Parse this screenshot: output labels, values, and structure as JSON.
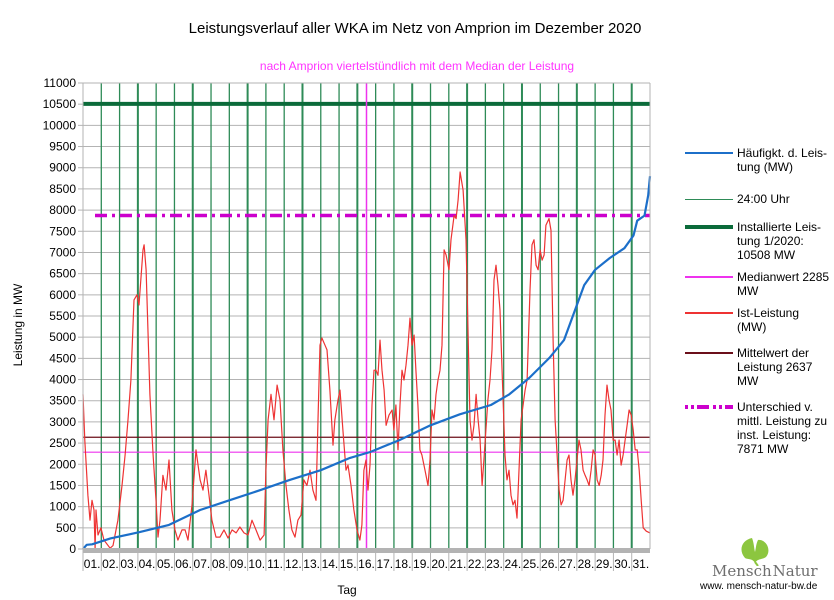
{
  "chart_data": {
    "type": "line",
    "title": "Leistungsverlauf aller WKA im Netz von Amprion im Dezember 2020",
    "subtitle": "nach Amprion viertelstündlich mit dem Median der Leistung",
    "xlabel": "Tag",
    "ylabel": "Leistung in MW",
    "ylim": [
      0,
      11000
    ],
    "xlim": [
      0,
      31
    ],
    "ytick_step": 500,
    "yticks": [
      "0",
      "500",
      "1000",
      "1500",
      "2000",
      "2500",
      "3000",
      "3500",
      "4000",
      "4500",
      "5000",
      "5500",
      "6000",
      "6500",
      "7000",
      "7500",
      "8000",
      "8500",
      "9000",
      "9500",
      "10000",
      "10500",
      "11000"
    ],
    "categories": [
      "01.",
      "02.",
      "03.",
      "04.",
      "05.",
      "06.",
      "07.",
      "08.",
      "09.",
      "10.",
      "11.",
      "12.",
      "13.",
      "14.",
      "15.",
      "16.",
      "17.",
      "18.",
      "19.",
      "20.",
      "21.",
      "22.",
      "23.",
      "24.",
      "25.",
      "26.",
      "27.",
      "28.",
      "29.",
      "30.",
      "31."
    ],
    "grid": true,
    "legend_position": "right",
    "series": [
      {
        "name": "Häufigkt. d. Leistung (MW)",
        "legend_lines": [
          "Häufigkt. d. Leis-",
          "tung (MW)"
        ],
        "color": "#1c6fc9",
        "style": "solid",
        "points": [
          [
            0,
            0
          ],
          [
            0.2,
            100
          ],
          [
            0.5,
            110
          ],
          [
            1.5,
            250
          ],
          [
            3.1,
            400
          ],
          [
            4.7,
            570
          ],
          [
            6.4,
            920
          ],
          [
            8.0,
            1150
          ],
          [
            9.7,
            1390
          ],
          [
            11.3,
            1630
          ],
          [
            13.0,
            1860
          ],
          [
            14.6,
            2150
          ],
          [
            15.7,
            2290
          ],
          [
            17.3,
            2570
          ],
          [
            19.0,
            2920
          ],
          [
            20.6,
            3180
          ],
          [
            22.3,
            3400
          ],
          [
            23.3,
            3650
          ],
          [
            24.4,
            4040
          ],
          [
            25.5,
            4510
          ],
          [
            26.3,
            4930
          ],
          [
            26.9,
            5640
          ],
          [
            27.4,
            6230
          ],
          [
            28.0,
            6590
          ],
          [
            28.8,
            6870
          ],
          [
            29.6,
            7100
          ],
          [
            30.1,
            7400
          ],
          [
            30.3,
            7750
          ],
          [
            30.7,
            7870
          ],
          [
            30.9,
            8350
          ],
          [
            31.0,
            8800
          ]
        ]
      },
      {
        "name": "24:00 Uhr",
        "legend_lines": [
          "24:00 Uhr"
        ],
        "color": "#2e8b57",
        "style": "vertical-day-lines"
      },
      {
        "name": "Installierte Leistung 1/2020: 10508 MW",
        "legend_lines": [
          "Installierte Leis-",
          "tung 1/2020:",
          "10508 MW"
        ],
        "color": "#0b6b3a",
        "style": "thick",
        "value": 10508
      },
      {
        "name": "Medianwert 2285 MW",
        "legend_lines": [
          "Medianwert 2285",
          "MW"
        ],
        "color": "#ee33ee",
        "style": "solid",
        "value": 2285,
        "x_marker_day": 15.5
      },
      {
        "name": "Ist-Leistung (MW)",
        "legend_lines": [
          "Ist-Leistung",
          "(MW)"
        ],
        "color": "#ee3333",
        "style": "solid",
        "points": [
          [
            0,
            3650
          ],
          [
            0.1,
            2570
          ],
          [
            0.27,
            1270
          ],
          [
            0.38,
            680
          ],
          [
            0.49,
            1150
          ],
          [
            0.6,
            920
          ],
          [
            0.66,
            0
          ],
          [
            0.71,
            920
          ],
          [
            0.82,
            330
          ],
          [
            0.98,
            500
          ],
          [
            1.15,
            210
          ],
          [
            1.48,
            20
          ],
          [
            1.64,
            80
          ],
          [
            1.91,
            680
          ],
          [
            2.13,
            1500
          ],
          [
            2.3,
            2220
          ],
          [
            2.46,
            3050
          ],
          [
            2.62,
            3990
          ],
          [
            2.79,
            5880
          ],
          [
            2.95,
            6000
          ],
          [
            3.06,
            5760
          ],
          [
            3.28,
            7060
          ],
          [
            3.34,
            7180
          ],
          [
            3.45,
            6590
          ],
          [
            3.56,
            5050
          ],
          [
            3.66,
            3650
          ],
          [
            3.83,
            2220
          ],
          [
            3.99,
            1150
          ],
          [
            4.1,
            280
          ],
          [
            4.21,
            680
          ],
          [
            4.37,
            1740
          ],
          [
            4.54,
            1390
          ],
          [
            4.7,
            2100
          ],
          [
            4.86,
            920
          ],
          [
            5.03,
            450
          ],
          [
            5.19,
            210
          ],
          [
            5.41,
            450
          ],
          [
            5.58,
            450
          ],
          [
            5.74,
            210
          ],
          [
            5.96,
            1040
          ],
          [
            6.18,
            2340
          ],
          [
            6.4,
            1630
          ],
          [
            6.56,
            1390
          ],
          [
            6.72,
            1860
          ],
          [
            6.89,
            1270
          ],
          [
            7.05,
            680
          ],
          [
            7.27,
            280
          ],
          [
            7.49,
            280
          ],
          [
            7.71,
            450
          ],
          [
            7.93,
            260
          ],
          [
            8.15,
            450
          ],
          [
            8.37,
            380
          ],
          [
            8.58,
            520
          ],
          [
            8.8,
            380
          ],
          [
            9.02,
            330
          ],
          [
            9.24,
            680
          ],
          [
            9.46,
            450
          ],
          [
            9.68,
            210
          ],
          [
            9.9,
            330
          ],
          [
            10.0,
            1860
          ],
          [
            10.12,
            3050
          ],
          [
            10.28,
            3650
          ],
          [
            10.44,
            3050
          ],
          [
            10.61,
            3870
          ],
          [
            10.77,
            3520
          ],
          [
            10.93,
            2340
          ],
          [
            11.1,
            1500
          ],
          [
            11.26,
            920
          ],
          [
            11.42,
            450
          ],
          [
            11.59,
            280
          ],
          [
            11.75,
            680
          ],
          [
            11.92,
            800
          ],
          [
            12.08,
            1630
          ],
          [
            12.24,
            1500
          ],
          [
            12.41,
            1860
          ],
          [
            12.57,
            1390
          ],
          [
            12.74,
            1150
          ],
          [
            12.85,
            3050
          ],
          [
            12.96,
            4810
          ],
          [
            13.06,
            4980
          ],
          [
            13.23,
            4810
          ],
          [
            13.34,
            4700
          ],
          [
            13.5,
            3750
          ],
          [
            13.67,
            2450
          ],
          [
            13.77,
            3050
          ],
          [
            13.94,
            3520
          ],
          [
            14.05,
            3750
          ],
          [
            14.21,
            2810
          ],
          [
            14.38,
            1860
          ],
          [
            14.49,
            1980
          ],
          [
            14.65,
            1500
          ],
          [
            14.81,
            920
          ],
          [
            14.98,
            450
          ],
          [
            15.14,
            210
          ],
          [
            15.25,
            570
          ],
          [
            15.36,
            1860
          ],
          [
            15.47,
            2100
          ],
          [
            15.58,
            1390
          ],
          [
            15.69,
            1980
          ],
          [
            15.8,
            3400
          ],
          [
            15.91,
            4220
          ],
          [
            16.02,
            4220
          ],
          [
            16.13,
            4100
          ],
          [
            16.24,
            4930
          ],
          [
            16.35,
            4220
          ],
          [
            16.46,
            3750
          ],
          [
            16.57,
            2920
          ],
          [
            16.73,
            3160
          ],
          [
            16.9,
            3280
          ],
          [
            17.0,
            2810
          ],
          [
            17.11,
            3400
          ],
          [
            17.22,
            2340
          ],
          [
            17.33,
            3400
          ],
          [
            17.44,
            4220
          ],
          [
            17.55,
            3990
          ],
          [
            17.66,
            4340
          ],
          [
            17.77,
            4810
          ],
          [
            17.88,
            5450
          ],
          [
            17.99,
            4810
          ],
          [
            18.1,
            5050
          ],
          [
            18.2,
            4220
          ],
          [
            18.31,
            3400
          ],
          [
            18.42,
            2340
          ],
          [
            18.53,
            2220
          ],
          [
            18.7,
            1860
          ],
          [
            18.86,
            1500
          ],
          [
            18.97,
            2100
          ],
          [
            19.08,
            3280
          ],
          [
            19.19,
            3050
          ],
          [
            19.3,
            3650
          ],
          [
            19.41,
            3990
          ],
          [
            19.52,
            4220
          ],
          [
            19.63,
            4810
          ],
          [
            19.74,
            7060
          ],
          [
            19.85,
            6940
          ],
          [
            20.01,
            6590
          ],
          [
            20.12,
            7300
          ],
          [
            20.29,
            7870
          ],
          [
            20.4,
            7800
          ],
          [
            20.51,
            8240
          ],
          [
            20.62,
            8900
          ],
          [
            20.78,
            8470
          ],
          [
            20.94,
            7300
          ],
          [
            21.16,
            3050
          ],
          [
            21.27,
            2570
          ],
          [
            21.38,
            2920
          ],
          [
            21.49,
            3650
          ],
          [
            21.6,
            3050
          ],
          [
            21.71,
            2570
          ],
          [
            21.82,
            1500
          ],
          [
            21.92,
            2100
          ],
          [
            22.03,
            2810
          ],
          [
            22.14,
            3520
          ],
          [
            22.25,
            3990
          ],
          [
            22.36,
            4700
          ],
          [
            22.47,
            6350
          ],
          [
            22.58,
            6700
          ],
          [
            22.69,
            6230
          ],
          [
            22.8,
            5640
          ],
          [
            22.96,
            3650
          ],
          [
            23.07,
            2220
          ],
          [
            23.18,
            1630
          ],
          [
            23.29,
            1860
          ],
          [
            23.4,
            1270
          ],
          [
            23.51,
            1040
          ],
          [
            23.62,
            1150
          ],
          [
            23.73,
            730
          ],
          [
            23.84,
            1860
          ],
          [
            23.95,
            3050
          ],
          [
            24.06,
            3400
          ],
          [
            24.17,
            3750
          ],
          [
            24.28,
            3990
          ],
          [
            24.44,
            6110
          ],
          [
            24.55,
            7180
          ],
          [
            24.66,
            7300
          ],
          [
            24.77,
            6700
          ],
          [
            24.88,
            6590
          ],
          [
            24.99,
            7060
          ],
          [
            25.1,
            6820
          ],
          [
            25.21,
            6940
          ],
          [
            25.31,
            7640
          ],
          [
            25.48,
            7800
          ],
          [
            25.59,
            7520
          ],
          [
            25.7,
            4930
          ],
          [
            25.81,
            3050
          ],
          [
            25.92,
            2220
          ],
          [
            26.03,
            1390
          ],
          [
            26.14,
            1040
          ],
          [
            26.25,
            1150
          ],
          [
            26.36,
            1630
          ],
          [
            26.47,
            2100
          ],
          [
            26.57,
            2220
          ],
          [
            26.68,
            1630
          ],
          [
            26.79,
            1270
          ],
          [
            26.9,
            1630
          ],
          [
            27.01,
            2100
          ],
          [
            27.12,
            2570
          ],
          [
            27.23,
            2340
          ],
          [
            27.34,
            1860
          ],
          [
            27.45,
            1740
          ],
          [
            27.56,
            1630
          ],
          [
            27.67,
            1500
          ],
          [
            27.78,
            1860
          ],
          [
            27.89,
            2340
          ],
          [
            28.0,
            2220
          ],
          [
            28.11,
            1630
          ],
          [
            28.22,
            1500
          ],
          [
            28.33,
            1740
          ],
          [
            28.43,
            2100
          ],
          [
            28.54,
            3160
          ],
          [
            28.65,
            3870
          ],
          [
            28.76,
            3520
          ],
          [
            28.87,
            3280
          ],
          [
            28.98,
            2570
          ],
          [
            29.09,
            2570
          ],
          [
            29.2,
            2220
          ],
          [
            29.31,
            2570
          ],
          [
            29.42,
            1980
          ],
          [
            29.53,
            2220
          ],
          [
            29.64,
            2570
          ],
          [
            29.75,
            2920
          ],
          [
            29.86,
            3280
          ],
          [
            29.97,
            3160
          ],
          [
            30.08,
            2810
          ],
          [
            30.19,
            2340
          ],
          [
            30.3,
            2340
          ],
          [
            30.41,
            1860
          ],
          [
            30.52,
            1150
          ],
          [
            30.63,
            500
          ],
          [
            30.8,
            420
          ],
          [
            31.0,
            380
          ]
        ]
      },
      {
        "name": "Mittelwert der Leistung 2637 MW",
        "legend_lines": [
          "Mittelwert der",
          "Leistung 2637",
          "MW"
        ],
        "color": "#6b0f1a",
        "style": "solid",
        "value": 2637
      },
      {
        "name": "Unterschied v. mittl. Leistung zu inst. Leistung: 7871 MW",
        "legend_lines": [
          "Unterschied v.",
          "mittl. Leistung zu",
          "inst. Leistung:",
          "7871 MW"
        ],
        "color": "#cc00cc",
        "style": "dash-dot",
        "value": 7871
      }
    ]
  },
  "logo": {
    "name": "Mensch Natur",
    "name_part1": "Mensch",
    "name_part2": "Natur",
    "url": "www. mensch-natur-bw.de"
  }
}
